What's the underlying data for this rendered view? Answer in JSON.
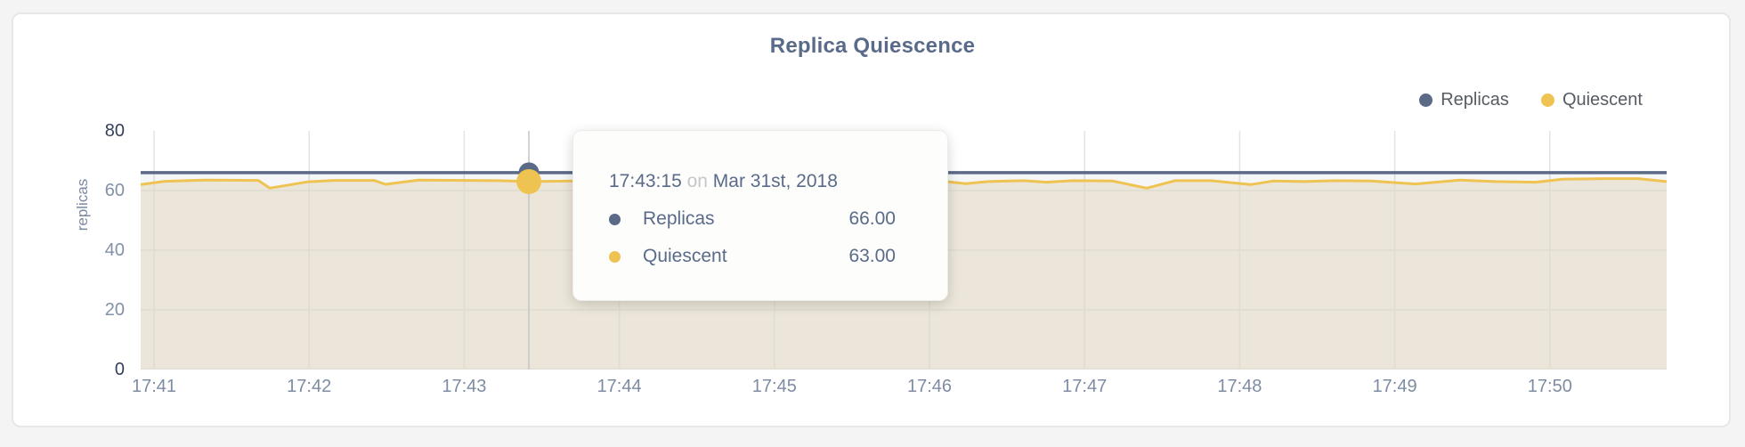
{
  "chart": {
    "title": "Replica Quiescence",
    "y_axis_title": "replicas"
  },
  "legend": [
    {
      "label": "Replicas",
      "color": "#5a6a87"
    },
    {
      "label": "Quiescent",
      "color": "#eec351"
    }
  ],
  "tooltip": {
    "time": "17:43:15",
    "connector": "on",
    "date": "Mar 31st, 2018",
    "rows": [
      {
        "label": "Replicas",
        "value": "66.00",
        "color": "#5a6a87"
      },
      {
        "label": "Quiescent",
        "value": "63.00",
        "color": "#eec351"
      }
    ]
  },
  "chart_data": {
    "type": "line",
    "title": "Replica Quiescence",
    "xlabel": "",
    "ylabel": "replicas",
    "ylim": [
      0,
      80
    ],
    "grid": true,
    "legend_position": "top-right",
    "x_unit": "minutes after 17:41",
    "x_ticks": [
      {
        "label": "17:41",
        "m": 0
      },
      {
        "label": "17:42",
        "m": 1
      },
      {
        "label": "17:43",
        "m": 2
      },
      {
        "label": "17:44",
        "m": 3
      },
      {
        "label": "17:45",
        "m": 4
      },
      {
        "label": "17:46",
        "m": 5
      },
      {
        "label": "17:47",
        "m": 6
      },
      {
        "label": "17:48",
        "m": 7
      },
      {
        "label": "17:49",
        "m": 8
      },
      {
        "label": "17:50",
        "m": 9
      }
    ],
    "y_ticks": [
      {
        "label": "80",
        "v": 80,
        "edge": true
      },
      {
        "label": "60",
        "v": 60,
        "edge": false
      },
      {
        "label": "40",
        "v": 40,
        "edge": false
      },
      {
        "label": "20",
        "v": 20,
        "edge": false
      },
      {
        "label": "0",
        "v": 0,
        "edge": true
      }
    ],
    "series": [
      {
        "name": "Replicas",
        "color": "#5a6a87",
        "width": 3.5,
        "fill": "#5b6b87",
        "fill_opacity": 0.06,
        "points": [
          [
            -0.086,
            66
          ],
          [
            9.753,
            66
          ]
        ]
      },
      {
        "name": "Quiescent",
        "color": "#eec351",
        "width": 3,
        "fill": "#e5dcc5",
        "fill_opacity": 0.6,
        "points": [
          [
            -0.086,
            62.0
          ],
          [
            0.069,
            63.1
          ],
          [
            0.327,
            63.5
          ],
          [
            0.672,
            63.4
          ],
          [
            0.746,
            60.8
          ],
          [
            0.987,
            62.9
          ],
          [
            1.16,
            63.4
          ],
          [
            1.418,
            63.4
          ],
          [
            1.493,
            62.1
          ],
          [
            1.705,
            63.5
          ],
          [
            1.992,
            63.4
          ],
          [
            2.221,
            63.3
          ],
          [
            2.417,
            63.0
          ],
          [
            2.7,
            63.2
          ],
          [
            3.0,
            63.4
          ],
          [
            3.3,
            63.1
          ],
          [
            3.6,
            63.3
          ],
          [
            3.9,
            63.2
          ],
          [
            4.2,
            63.4
          ],
          [
            4.5,
            63.1
          ],
          [
            4.8,
            63.3
          ],
          [
            5.05,
            63.3
          ],
          [
            5.235,
            62.3
          ],
          [
            5.378,
            63.0
          ],
          [
            5.608,
            63.3
          ],
          [
            5.752,
            62.8
          ],
          [
            5.924,
            63.3
          ],
          [
            6.182,
            63.2
          ],
          [
            6.4,
            60.8
          ],
          [
            6.584,
            63.3
          ],
          [
            6.814,
            63.3
          ],
          [
            7.072,
            62.0
          ],
          [
            7.215,
            63.2
          ],
          [
            7.416,
            63.0
          ],
          [
            7.617,
            63.3
          ],
          [
            7.847,
            63.2
          ],
          [
            8.134,
            62.2
          ],
          [
            8.421,
            63.5
          ],
          [
            8.651,
            63.0
          ],
          [
            8.909,
            62.8
          ],
          [
            9.081,
            63.8
          ],
          [
            9.339,
            64.0
          ],
          [
            9.569,
            64.0
          ],
          [
            9.753,
            63.0
          ]
        ]
      }
    ],
    "hover": {
      "m": 2.417,
      "time": "17:43:15",
      "date": "Mar 31st, 2018",
      "values": {
        "Replicas": 66.0,
        "Quiescent": 63.0
      },
      "crosshair_color": "#c4c4c6"
    }
  }
}
